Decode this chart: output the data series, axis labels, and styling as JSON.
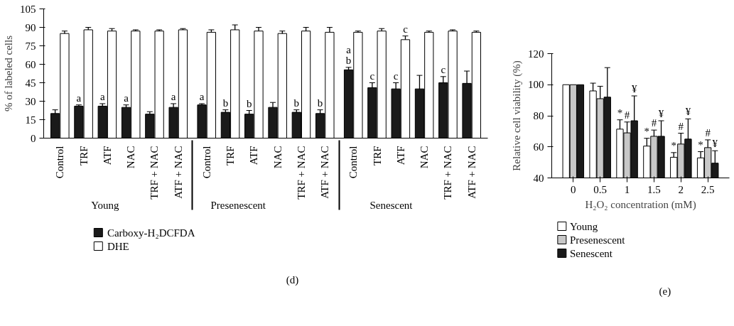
{
  "chart_data": [
    {
      "type": "bar",
      "title": "(d)",
      "ylabel": "% of labeled cells",
      "categories": [
        "Control",
        "TRF",
        "ATF",
        "NAC",
        "TRF + NAC",
        "ATF + NAC",
        "Control",
        "TRF",
        "ATF",
        "NAC",
        "TRF + NAC",
        "ATF + NAC",
        "Control",
        "TRF",
        "ATF",
        "NAC",
        "TRF + NAC",
        "ATF + NAC"
      ],
      "annotations": [
        "Young",
        "Presenescent",
        "Senescent"
      ],
      "series": [
        {
          "name": "Carboxy-H₂DCFDA",
          "color": "#1a1a1a",
          "values": [
            20,
            26,
            26,
            25,
            19.5,
            25,
            27,
            21,
            19.5,
            25,
            21,
            20,
            55.5,
            41,
            40,
            40,
            45,
            44.5
          ],
          "errors": [
            3,
            1,
            2,
            2,
            2,
            3,
            1,
            2,
            3,
            4,
            2,
            3,
            2,
            4,
            5,
            11,
            5,
            10
          ],
          "value_labels": [
            null,
            "a",
            "a",
            "a",
            null,
            "a",
            "a",
            "b",
            "b",
            null,
            "b",
            "b",
            "a\nb",
            "c",
            "c",
            null,
            "c",
            null
          ]
        },
        {
          "name": "DHE",
          "color": "#ffffff",
          "values": [
            85,
            88,
            87,
            87,
            87,
            88,
            86,
            88,
            87,
            85,
            87,
            86,
            86,
            87,
            80,
            86,
            87,
            86
          ],
          "errors": [
            2,
            2,
            2,
            1,
            1,
            1,
            2,
            4,
            3,
            2,
            3,
            4,
            1,
            2,
            3,
            1,
            1,
            1
          ],
          "value_labels": [
            null,
            null,
            null,
            null,
            null,
            null,
            null,
            null,
            null,
            null,
            null,
            null,
            null,
            null,
            "c",
            null,
            null,
            null
          ]
        }
      ],
      "ylim": [
        0,
        105
      ],
      "yticks": [
        0,
        15,
        30,
        45,
        60,
        75,
        90,
        105
      ],
      "grid": false,
      "legend": "bottom"
    },
    {
      "type": "bar",
      "title": "(e)",
      "ylabel": "Relative cell viability (%)",
      "xlabel": "H₂O₂ concentration (mM)",
      "categories": [
        "0",
        "0.5",
        "1",
        "1.5",
        "2",
        "2.5"
      ],
      "series": [
        {
          "name": "Young",
          "color": "#ffffff",
          "values": [
            100,
            96,
            71.4,
            60.5,
            53.3,
            52.9
          ],
          "errors": [
            null,
            5,
            6,
            5,
            3,
            4
          ],
          "value_labels": [
            null,
            null,
            "*",
            "*",
            "*",
            "*"
          ]
        },
        {
          "name": "Presenescent",
          "color": "#c8c8c8",
          "values": [
            100,
            91,
            69,
            66.8,
            61.8,
            59.5
          ],
          "errors": [
            null,
            8,
            7,
            4,
            7,
            5
          ],
          "value_labels": [
            null,
            null,
            "#",
            "#",
            "#",
            "#"
          ]
        },
        {
          "name": "Senescent",
          "color": "#1a1a1a",
          "values": [
            100,
            92,
            76.8,
            66.8,
            65,
            49.5
          ],
          "errors": [
            null,
            19,
            16,
            10,
            13,
            8
          ],
          "value_labels": [
            null,
            null,
            "¥",
            "¥",
            "¥",
            "¥"
          ]
        }
      ],
      "ylim": [
        40,
        120
      ],
      "yticks": [
        40,
        60,
        80,
        100,
        120
      ],
      "grid": false,
      "legend": "bottom"
    }
  ]
}
